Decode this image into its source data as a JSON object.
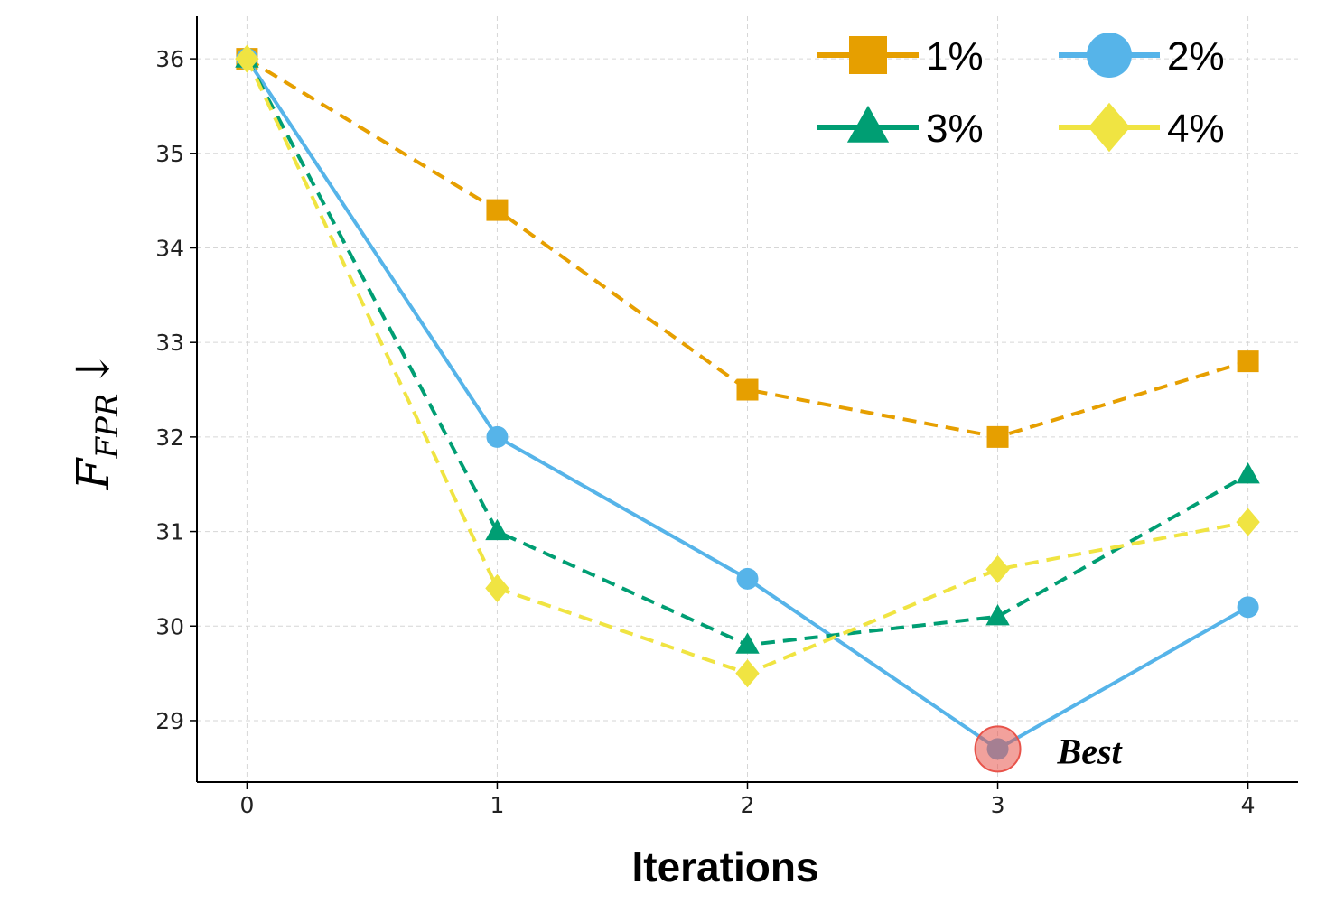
{
  "chart_data": {
    "type": "line",
    "title": "",
    "xlabel": "Iterations",
    "ylabel": {
      "main": "F",
      "sub": "FPR",
      "arrow": "↓"
    },
    "x": [
      0,
      1,
      2,
      3,
      4
    ],
    "xlim": [
      -0.2,
      4.2
    ],
    "ylim": [
      28.35,
      36.45
    ],
    "xticks": [
      "0",
      "1",
      "2",
      "3",
      "4"
    ],
    "yticks": [
      "29",
      "30",
      "31",
      "32",
      "33",
      "34",
      "35",
      "36"
    ],
    "grid": true,
    "legend_position": "top-right",
    "series": [
      {
        "name": "1%",
        "values": [
          36.0,
          34.4,
          32.5,
          32.0,
          32.8
        ],
        "color": "#E69F00",
        "marker": "square",
        "line": "dashed"
      },
      {
        "name": "2%",
        "values": [
          36.0,
          32.0,
          30.5,
          28.7,
          30.2
        ],
        "color": "#56B4E9",
        "marker": "circle",
        "line": "solid"
      },
      {
        "name": "3%",
        "values": [
          36.0,
          31.0,
          29.8,
          30.1,
          31.6
        ],
        "color": "#009E73",
        "marker": "triangle",
        "line": "dashed"
      },
      {
        "name": "4%",
        "values": [
          36.0,
          30.4,
          29.5,
          30.6,
          31.1
        ],
        "color": "#F0E442",
        "marker": "diamond",
        "line": "dashed"
      }
    ],
    "annotation": {
      "text": "Best",
      "x": 3,
      "y": 28.7,
      "color": "#E8534A"
    }
  }
}
